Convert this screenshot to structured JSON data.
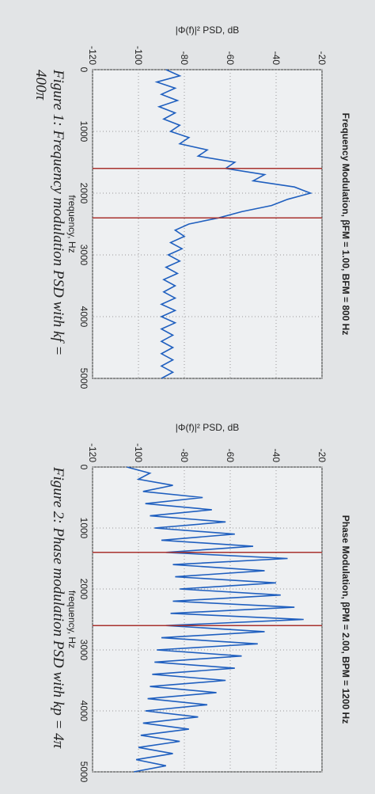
{
  "chart_data": [
    {
      "type": "line",
      "title": "Frequency Modulation, βFM = 1.00, BFM = 800 Hz",
      "xlabel": "frequency, Hz",
      "ylabel": "|Φ(f)|² PSD, dB",
      "caption": "Figure 1: Frequency modulation PSD with kf = 400π",
      "xlim": [
        0,
        5000
      ],
      "xticks": [
        0,
        1000,
        2000,
        3000,
        4000,
        5000
      ],
      "ylim": [
        -120,
        -20
      ],
      "yticks": [
        -120,
        -100,
        -80,
        -60,
        -40,
        -20
      ],
      "grid": true,
      "color": "#1f5fbf",
      "vlines": [
        1600,
        2400
      ],
      "vline_color": "#a8322e",
      "x": [
        0,
        100,
        200,
        300,
        400,
        500,
        600,
        700,
        800,
        900,
        1000,
        1100,
        1200,
        1300,
        1400,
        1500,
        1600,
        1700,
        1800,
        1900,
        2000,
        2100,
        2200,
        2300,
        2400,
        2500,
        2600,
        2700,
        2800,
        2900,
        3000,
        3100,
        3200,
        3300,
        3400,
        3500,
        3600,
        3700,
        3800,
        3900,
        4000,
        4100,
        4200,
        4300,
        4400,
        4500,
        4600,
        4700,
        4800,
        4900,
        5000
      ],
      "values": [
        -88,
        -82,
        -92,
        -84,
        -90,
        -83,
        -91,
        -84,
        -89,
        -82,
        -86,
        -78,
        -82,
        -70,
        -74,
        -58,
        -62,
        -45,
        -50,
        -32,
        -25,
        -35,
        -42,
        -55,
        -65,
        -78,
        -84,
        -80,
        -86,
        -81,
        -87,
        -82,
        -88,
        -83,
        -89,
        -84,
        -89,
        -84,
        -90,
        -84,
        -90,
        -84,
        -90,
        -85,
        -90,
        -85,
        -90,
        -85,
        -90,
        -85,
        -90
      ]
    },
    {
      "type": "line",
      "title": "Phase Modulation, βPM = 2.00, BPM = 1200 Hz",
      "xlabel": "frequency, Hz",
      "ylabel": "|Φ(f)|² PSD, dB",
      "caption": "Figure 2: Phase modulation PSD with kp = 4π",
      "xlim": [
        0,
        5000
      ],
      "xticks": [
        0,
        1000,
        2000,
        3000,
        4000,
        5000
      ],
      "ylim": [
        -120,
        -20
      ],
      "yticks": [
        -120,
        -100,
        -80,
        -60,
        -40,
        -20
      ],
      "grid": true,
      "color": "#1f5fbf",
      "vlines": [
        1400,
        2600
      ],
      "vline_color": "#a8322e",
      "x": [
        0,
        100,
        200,
        300,
        400,
        500,
        600,
        700,
        800,
        900,
        1000,
        1100,
        1200,
        1300,
        1400,
        1500,
        1600,
        1700,
        1800,
        1900,
        2000,
        2100,
        2200,
        2300,
        2400,
        2500,
        2600,
        2700,
        2800,
        2900,
        3000,
        3100,
        3200,
        3300,
        3400,
        3500,
        3600,
        3700,
        3800,
        3900,
        4000,
        4100,
        4200,
        4300,
        4400,
        4500,
        4600,
        4700,
        4800,
        4900,
        5000
      ],
      "values": [
        -105,
        -95,
        -100,
        -85,
        -98,
        -72,
        -97,
        -68,
        -95,
        -62,
        -93,
        -58,
        -90,
        -50,
        -88,
        -35,
        -85,
        -45,
        -84,
        -40,
        -82,
        -38,
        -85,
        -32,
        -86,
        -28,
        -88,
        -45,
        -90,
        -48,
        -92,
        -55,
        -93,
        -58,
        -94,
        -62,
        -95,
        -66,
        -96,
        -70,
        -97,
        -74,
        -98,
        -78,
        -99,
        -82,
        -100,
        -85,
        -101,
        -88,
        -102
      ]
    }
  ]
}
